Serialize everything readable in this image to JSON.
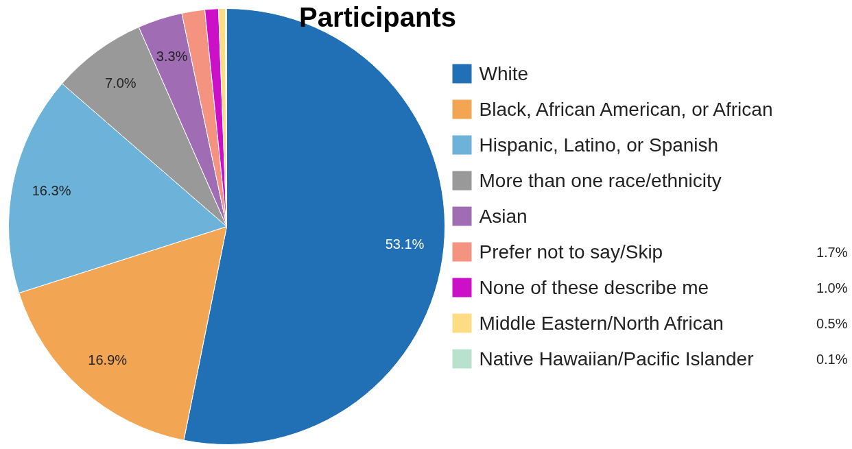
{
  "chart_data": {
    "type": "pie",
    "title": "Participants",
    "categories": [
      "White",
      "Black, African American, or African",
      "Hispanic, Latino, or Spanish",
      "More than one race/ethnicity",
      "Asian",
      "Prefer not to say/Skip",
      "None of these describe me",
      "Middle Eastern/North African",
      "Native Hawaiian/Pacific Islander"
    ],
    "values": [
      53.1,
      16.9,
      16.3,
      7.0,
      3.3,
      1.7,
      1.0,
      0.5,
      0.1
    ],
    "colors": [
      "#2170b5",
      "#f2a654",
      "#6cb2d9",
      "#999999",
      "#a06db4",
      "#f49480",
      "#cc10c8",
      "#fddc84",
      "#b9e2ce"
    ],
    "value_labels": [
      "53.1%",
      "16.9%",
      "16.3%",
      "7.0%",
      "3.3%",
      "1.7%",
      "1.0%",
      "0.5%",
      "0.1%"
    ],
    "legend": "right"
  }
}
